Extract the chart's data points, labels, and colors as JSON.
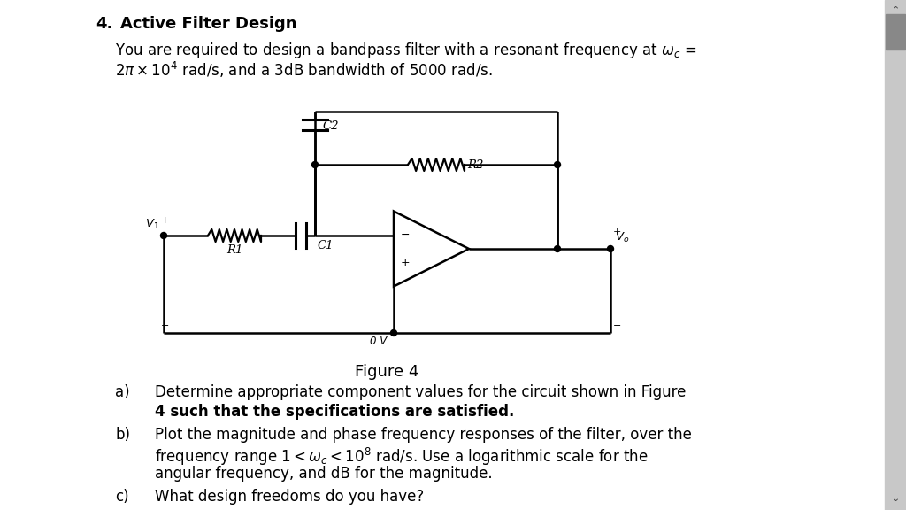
{
  "bg_color": "#ffffff",
  "title_number": "4.",
  "title_bold": "  Active Filter Design",
  "intro_line1": "You are required to design a bandpass filter with a resonant frequency at $\\omega_c$ =",
  "intro_line2": "$2\\pi \\times 10^4$ rad/s, and a 3dB bandwidth of 5000 rad/s.",
  "figure_label": "Figure 4",
  "gnd_label": "0 V",
  "C2_label": "C2",
  "R2_label": "R2",
  "R1_label": "R1",
  "C1_label": "C1",
  "Vi_label": "$V_1$",
  "Vo_label": "$V_o$",
  "item_a1": "Determine appropriate component values for the circuit shown in Figure",
  "item_a2": "4 such that the specifications are satisfied.",
  "item_b1": "Plot the magnitude and phase frequency responses of the filter, over the",
  "item_b2": "frequency range $1 < \\omega_c < 10^8$ rad/s. Use a logarithmic scale for the",
  "item_b3": "angular frequency, and dB for the magnitude.",
  "item_c1": "What design freedoms do you have?",
  "scrollbar_bg": "#c8c8c8",
  "scrollbar_thumb": "#888888"
}
